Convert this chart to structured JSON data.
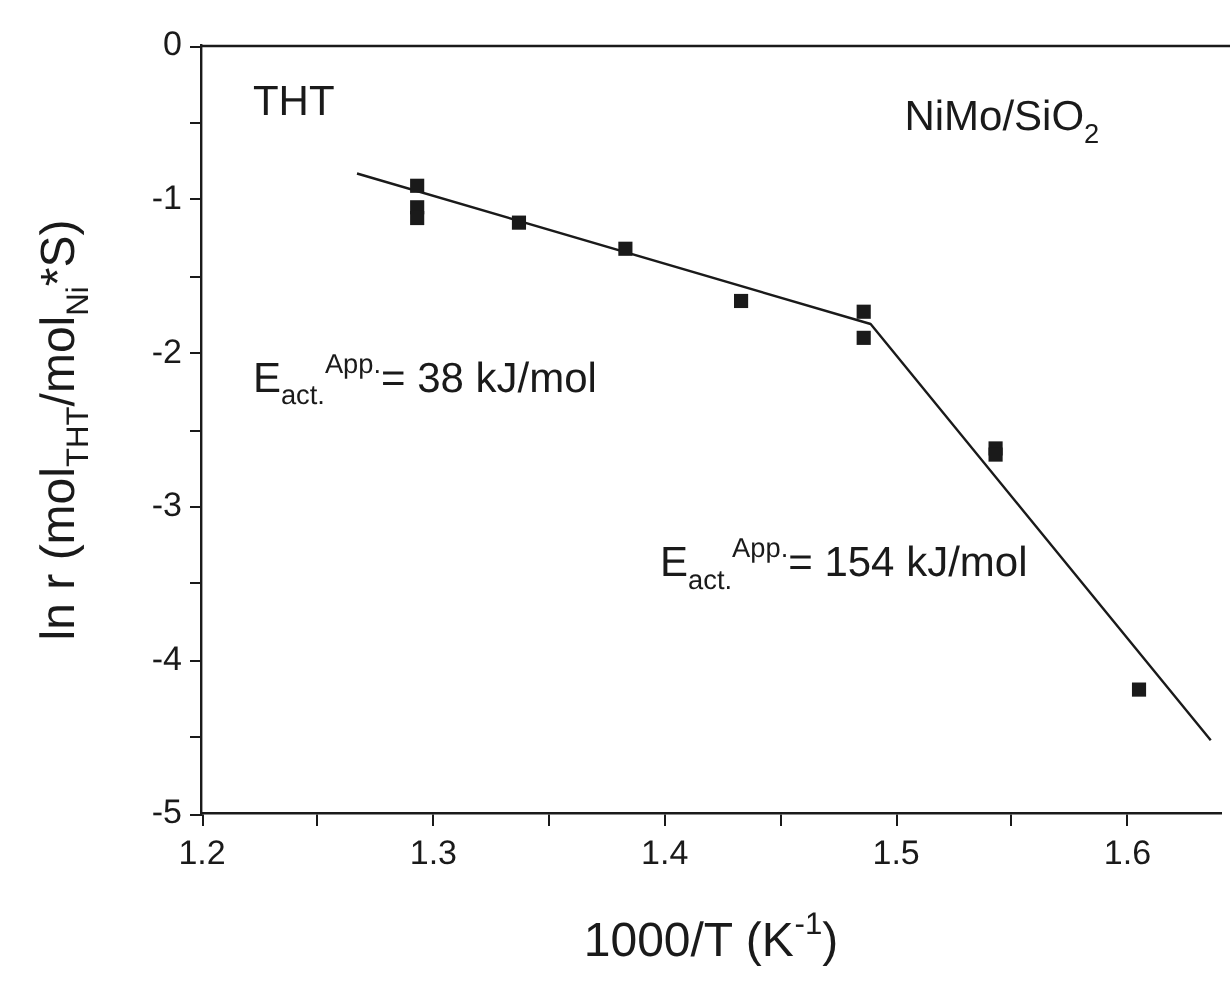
{
  "chart_data": {
    "type": "scatter",
    "xlabel": "1000/T (K$^{-1}$)",
    "ylabel": "ln r (mol$_{THT}$/mol$_{Ni}$*S)",
    "annotations": [
      "THT",
      "NiMo/SiO$_{2}$",
      "E$_{act.}$$^{App.}$= 38 kJ/mol",
      "E$_{act.}$$^{App.}$= 154 kJ/mol"
    ],
    "xlim": [
      1.2,
      1.64
    ],
    "ylim": [
      -5,
      0
    ],
    "xticks": [
      {
        "value": 1.2,
        "label": "1.2"
      },
      {
        "value": 1.25,
        "label": null
      },
      {
        "value": 1.3,
        "label": "1.3"
      },
      {
        "value": 1.35,
        "label": null
      },
      {
        "value": 1.4,
        "label": "1.4"
      },
      {
        "value": 1.45,
        "label": null
      },
      {
        "value": 1.5,
        "label": "1.5"
      },
      {
        "value": 1.55,
        "label": null
      },
      {
        "value": 1.6,
        "label": "1.6"
      }
    ],
    "yticks": [
      0,
      {
        "value": -0.5,
        "label": null
      },
      -1,
      {
        "value": -1.5,
        "label": null
      },
      -2,
      {
        "value": -2.5,
        "label": null
      },
      -3,
      {
        "value": -3.5,
        "label": null
      },
      -4,
      {
        "value": -4.5,
        "label": null
      },
      -5
    ],
    "grid": false,
    "legend": false,
    "marker": "square",
    "series": [
      {
        "color": "#1a1a1a",
        "x": [
          1.293,
          1.293,
          1.293,
          1.337,
          1.383,
          1.433,
          1.486,
          1.486,
          1.543,
          1.543,
          1.605
        ],
        "values": [
          -0.91,
          -1.05,
          -1.12,
          -1.15,
          -1.32,
          -1.66,
          -1.73,
          -1.9,
          -2.62,
          -2.66,
          -4.19
        ]
      },
      {
        "type": "line",
        "color": "#1a1a1a",
        "marker": "none",
        "x": [
          1.267,
          1.489,
          1.636
        ],
        "values": [
          -0.83,
          -1.81,
          -4.52
        ]
      }
    ]
  }
}
